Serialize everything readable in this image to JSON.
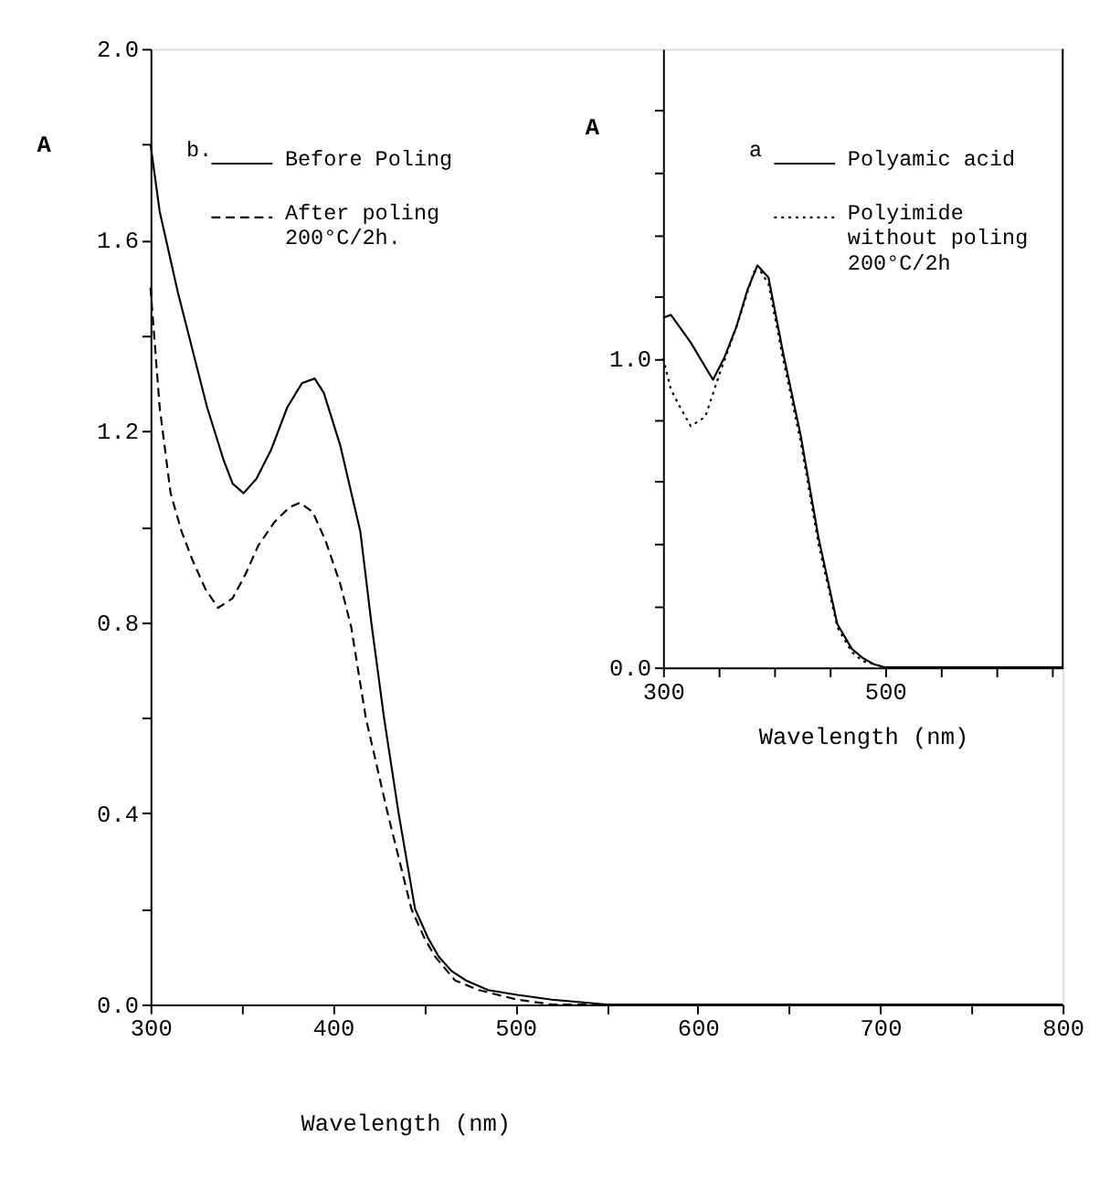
{
  "chart_data": [
    {
      "type": "line",
      "xlabel": "Wavelength (nm)",
      "ylabel": "A",
      "legend_title": "b.",
      "legend": "top left",
      "grid": false,
      "xlim": [
        300,
        800
      ],
      "ylim": [
        0,
        2.0
      ],
      "xticks": [
        300,
        {
          "value": 350,
          "label": null
        },
        400,
        {
          "value": 450,
          "label": null
        },
        500,
        {
          "value": 550,
          "label": null
        },
        600,
        {
          "value": 650,
          "label": null
        },
        700,
        {
          "value": 750,
          "label": null
        },
        800
      ],
      "yticks": [
        {
          "value": 0,
          "label": "0.0"
        },
        {
          "value": 0.2,
          "label": null
        },
        {
          "value": 0.4,
          "label": "0.4"
        },
        {
          "value": 0.6,
          "label": null
        },
        {
          "value": 0.8,
          "label": "0.8"
        },
        {
          "value": 1.0,
          "label": null
        },
        {
          "value": 1.2,
          "label": "1.2"
        },
        {
          "value": 1.4,
          "label": null
        },
        {
          "value": 1.6,
          "label": "1.6"
        },
        {
          "value": 1.8,
          "label": null
        },
        {
          "value": 2.0,
          "label": "2.0"
        }
      ],
      "series": [
        {
          "name": "Before Poling",
          "color": "#000000",
          "line_style": "solid",
          "x": [
            300,
            305,
            315,
            323,
            331,
            340,
            345,
            351,
            358,
            366,
            375,
            383,
            390,
            395,
            404,
            415,
            421,
            428,
            436,
            445,
            452,
            458,
            465,
            473,
            485,
            501,
            520,
            550,
            600,
            700,
            800
          ],
          "values": [
            1.8,
            1.66,
            1.49,
            1.37,
            1.25,
            1.14,
            1.09,
            1.07,
            1.1,
            1.16,
            1.25,
            1.3,
            1.31,
            1.28,
            1.17,
            0.99,
            0.8,
            0.6,
            0.4,
            0.2,
            0.14,
            0.1,
            0.07,
            0.05,
            0.03,
            0.02,
            0.01,
            0.0,
            0.0,
            0.0,
            0.0
          ]
        },
        {
          "name": "After poling\n200°C/2h.",
          "color": "#000000",
          "line_style": "dashed",
          "x": [
            300,
            305,
            311,
            317,
            323,
            330,
            337,
            345,
            352,
            359,
            368,
            376,
            382,
            389,
            396,
            404,
            410,
            418,
            430,
            443,
            450,
            456,
            467,
            480,
            501,
            520,
            800
          ],
          "values": [
            1.5,
            1.25,
            1.07,
            0.99,
            0.93,
            0.87,
            0.83,
            0.85,
            0.9,
            0.96,
            1.01,
            1.04,
            1.05,
            1.03,
            0.97,
            0.88,
            0.79,
            0.6,
            0.4,
            0.2,
            0.14,
            0.1,
            0.05,
            0.03,
            0.01,
            0.0,
            0.0
          ]
        }
      ]
    },
    {
      "type": "line",
      "xlabel": "Wavelength (nm)",
      "ylabel": "A",
      "legend_title": "a",
      "legend": "top right",
      "grid": false,
      "xlim": [
        300,
        660
      ],
      "ylim": [
        0,
        2.0
      ],
      "xticks": [
        300,
        {
          "value": 350,
          "label": null
        },
        {
          "value": 400,
          "label": null
        },
        {
          "value": 450,
          "label": null
        },
        500,
        {
          "value": 550,
          "label": null
        },
        {
          "value": 600,
          "label": null
        },
        {
          "value": 650,
          "label": null
        }
      ],
      "yticks": [
        {
          "value": 0,
          "label": "0.0"
        },
        {
          "value": 0.2,
          "label": null
        },
        {
          "value": 0.4,
          "label": null
        },
        {
          "value": 0.6,
          "label": null
        },
        {
          "value": 0.8,
          "label": null
        },
        {
          "value": 1.0,
          "label": "1.0"
        },
        {
          "value": 1.2,
          "label": null
        },
        {
          "value": 1.4,
          "label": null
        },
        {
          "value": 1.6,
          "label": null
        },
        {
          "value": 1.8,
          "label": null
        }
      ],
      "series": [
        {
          "name": "Polyamic acid",
          "color": "#000000",
          "line_style": "solid",
          "x": [
            300,
            307,
            315,
            325,
            335,
            345,
            355,
            366,
            376,
            385,
            395,
            408,
            424,
            440,
            457,
            470,
            480,
            490,
            500,
            660
          ],
          "values": [
            1.13,
            1.14,
            1.1,
            1.05,
            0.99,
            0.93,
            1.0,
            1.1,
            1.22,
            1.3,
            1.26,
            1.02,
            0.75,
            0.42,
            0.14,
            0.06,
            0.03,
            0.01,
            0.0,
            0.0
          ]
        },
        {
          "name": "Polyimide\nwithout poling\n200°C/2h",
          "color": "#000000",
          "line_style": "dotted",
          "x": [
            300,
            307,
            314,
            325,
            338,
            351,
            366,
            375,
            382,
            388,
            395,
            408,
            424,
            440,
            457,
            470,
            480,
            490,
            500,
            660
          ],
          "values": [
            1.0,
            0.9,
            0.85,
            0.78,
            0.81,
            0.95,
            1.1,
            1.2,
            1.28,
            1.28,
            1.24,
            1.0,
            0.73,
            0.4,
            0.13,
            0.05,
            0.02,
            0.01,
            0.0,
            0.0
          ]
        }
      ]
    }
  ]
}
